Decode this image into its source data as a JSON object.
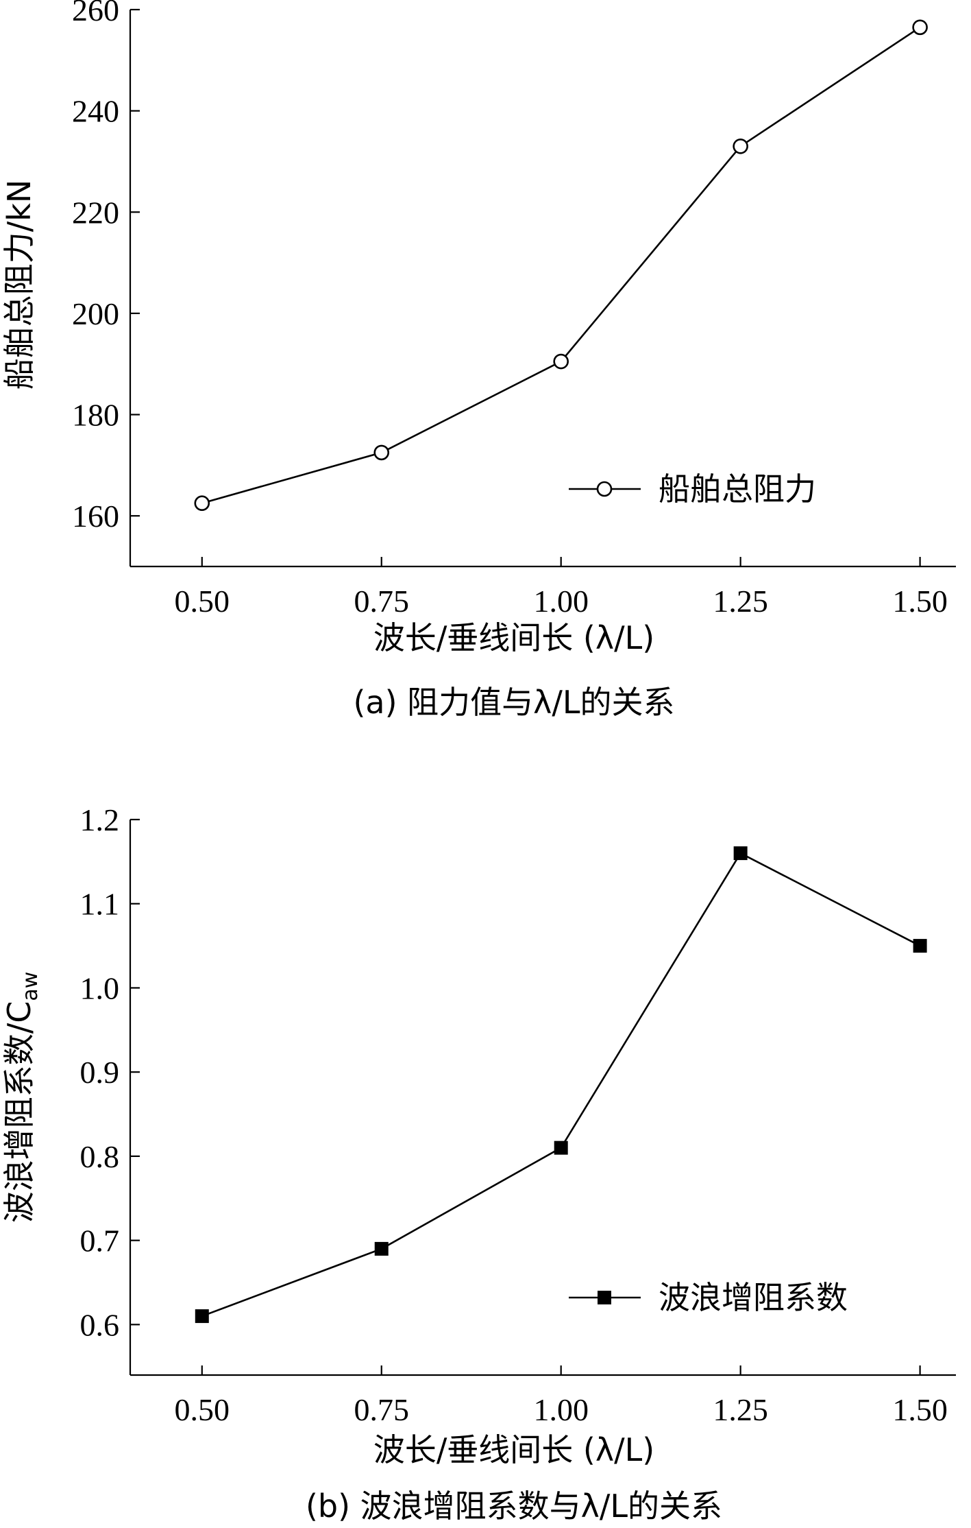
{
  "chart_data": [
    {
      "type": "line",
      "x": [
        0.5,
        0.75,
        1.0,
        1.25,
        1.5
      ],
      "x_tick_labels": [
        "0.50",
        "0.75",
        "1.00",
        "1.25",
        "1.50"
      ],
      "xlim": [
        0.4,
        1.55
      ],
      "y_ticks": [
        160,
        180,
        200,
        220,
        240,
        260
      ],
      "y_tick_labels": [
        "160",
        "180",
        "200",
        "220",
        "240",
        "260"
      ],
      "ylim": [
        150,
        260
      ],
      "series": [
        {
          "name": "船舶总阻力",
          "marker": "open-circle",
          "values": [
            162.5,
            172.5,
            190.5,
            233,
            256.5
          ]
        }
      ],
      "xlabel": "波长/垂线间长 (λ/L)",
      "ylabel": "船舶总阻力/kN",
      "caption": "(a) 阻力值与λ/L的关系",
      "legend": "bottom-right"
    },
    {
      "type": "line",
      "x": [
        0.5,
        0.75,
        1.0,
        1.25,
        1.5
      ],
      "x_tick_labels": [
        "0.50",
        "0.75",
        "1.00",
        "1.25",
        "1.50"
      ],
      "xlim": [
        0.4,
        1.55
      ],
      "y_ticks": [
        0.6,
        0.7,
        0.8,
        0.9,
        1.0,
        1.1,
        1.2
      ],
      "y_tick_labels": [
        "0.6",
        "0.7",
        "0.8",
        "0.9",
        "1.0",
        "1.1",
        "1.2"
      ],
      "ylim": [
        0.54,
        1.2
      ],
      "series": [
        {
          "name": "波浪增阻系数",
          "marker": "filled-square",
          "values": [
            0.61,
            0.69,
            0.81,
            1.16,
            1.05
          ]
        }
      ],
      "xlabel": "波长/垂线间长 (λ/L)",
      "ylabel_main": "波浪增阻系数/C",
      "ylabel_sub": "aw",
      "caption": "(b) 波浪增阻系数与λ/L的关系",
      "legend": "bottom-right"
    }
  ]
}
